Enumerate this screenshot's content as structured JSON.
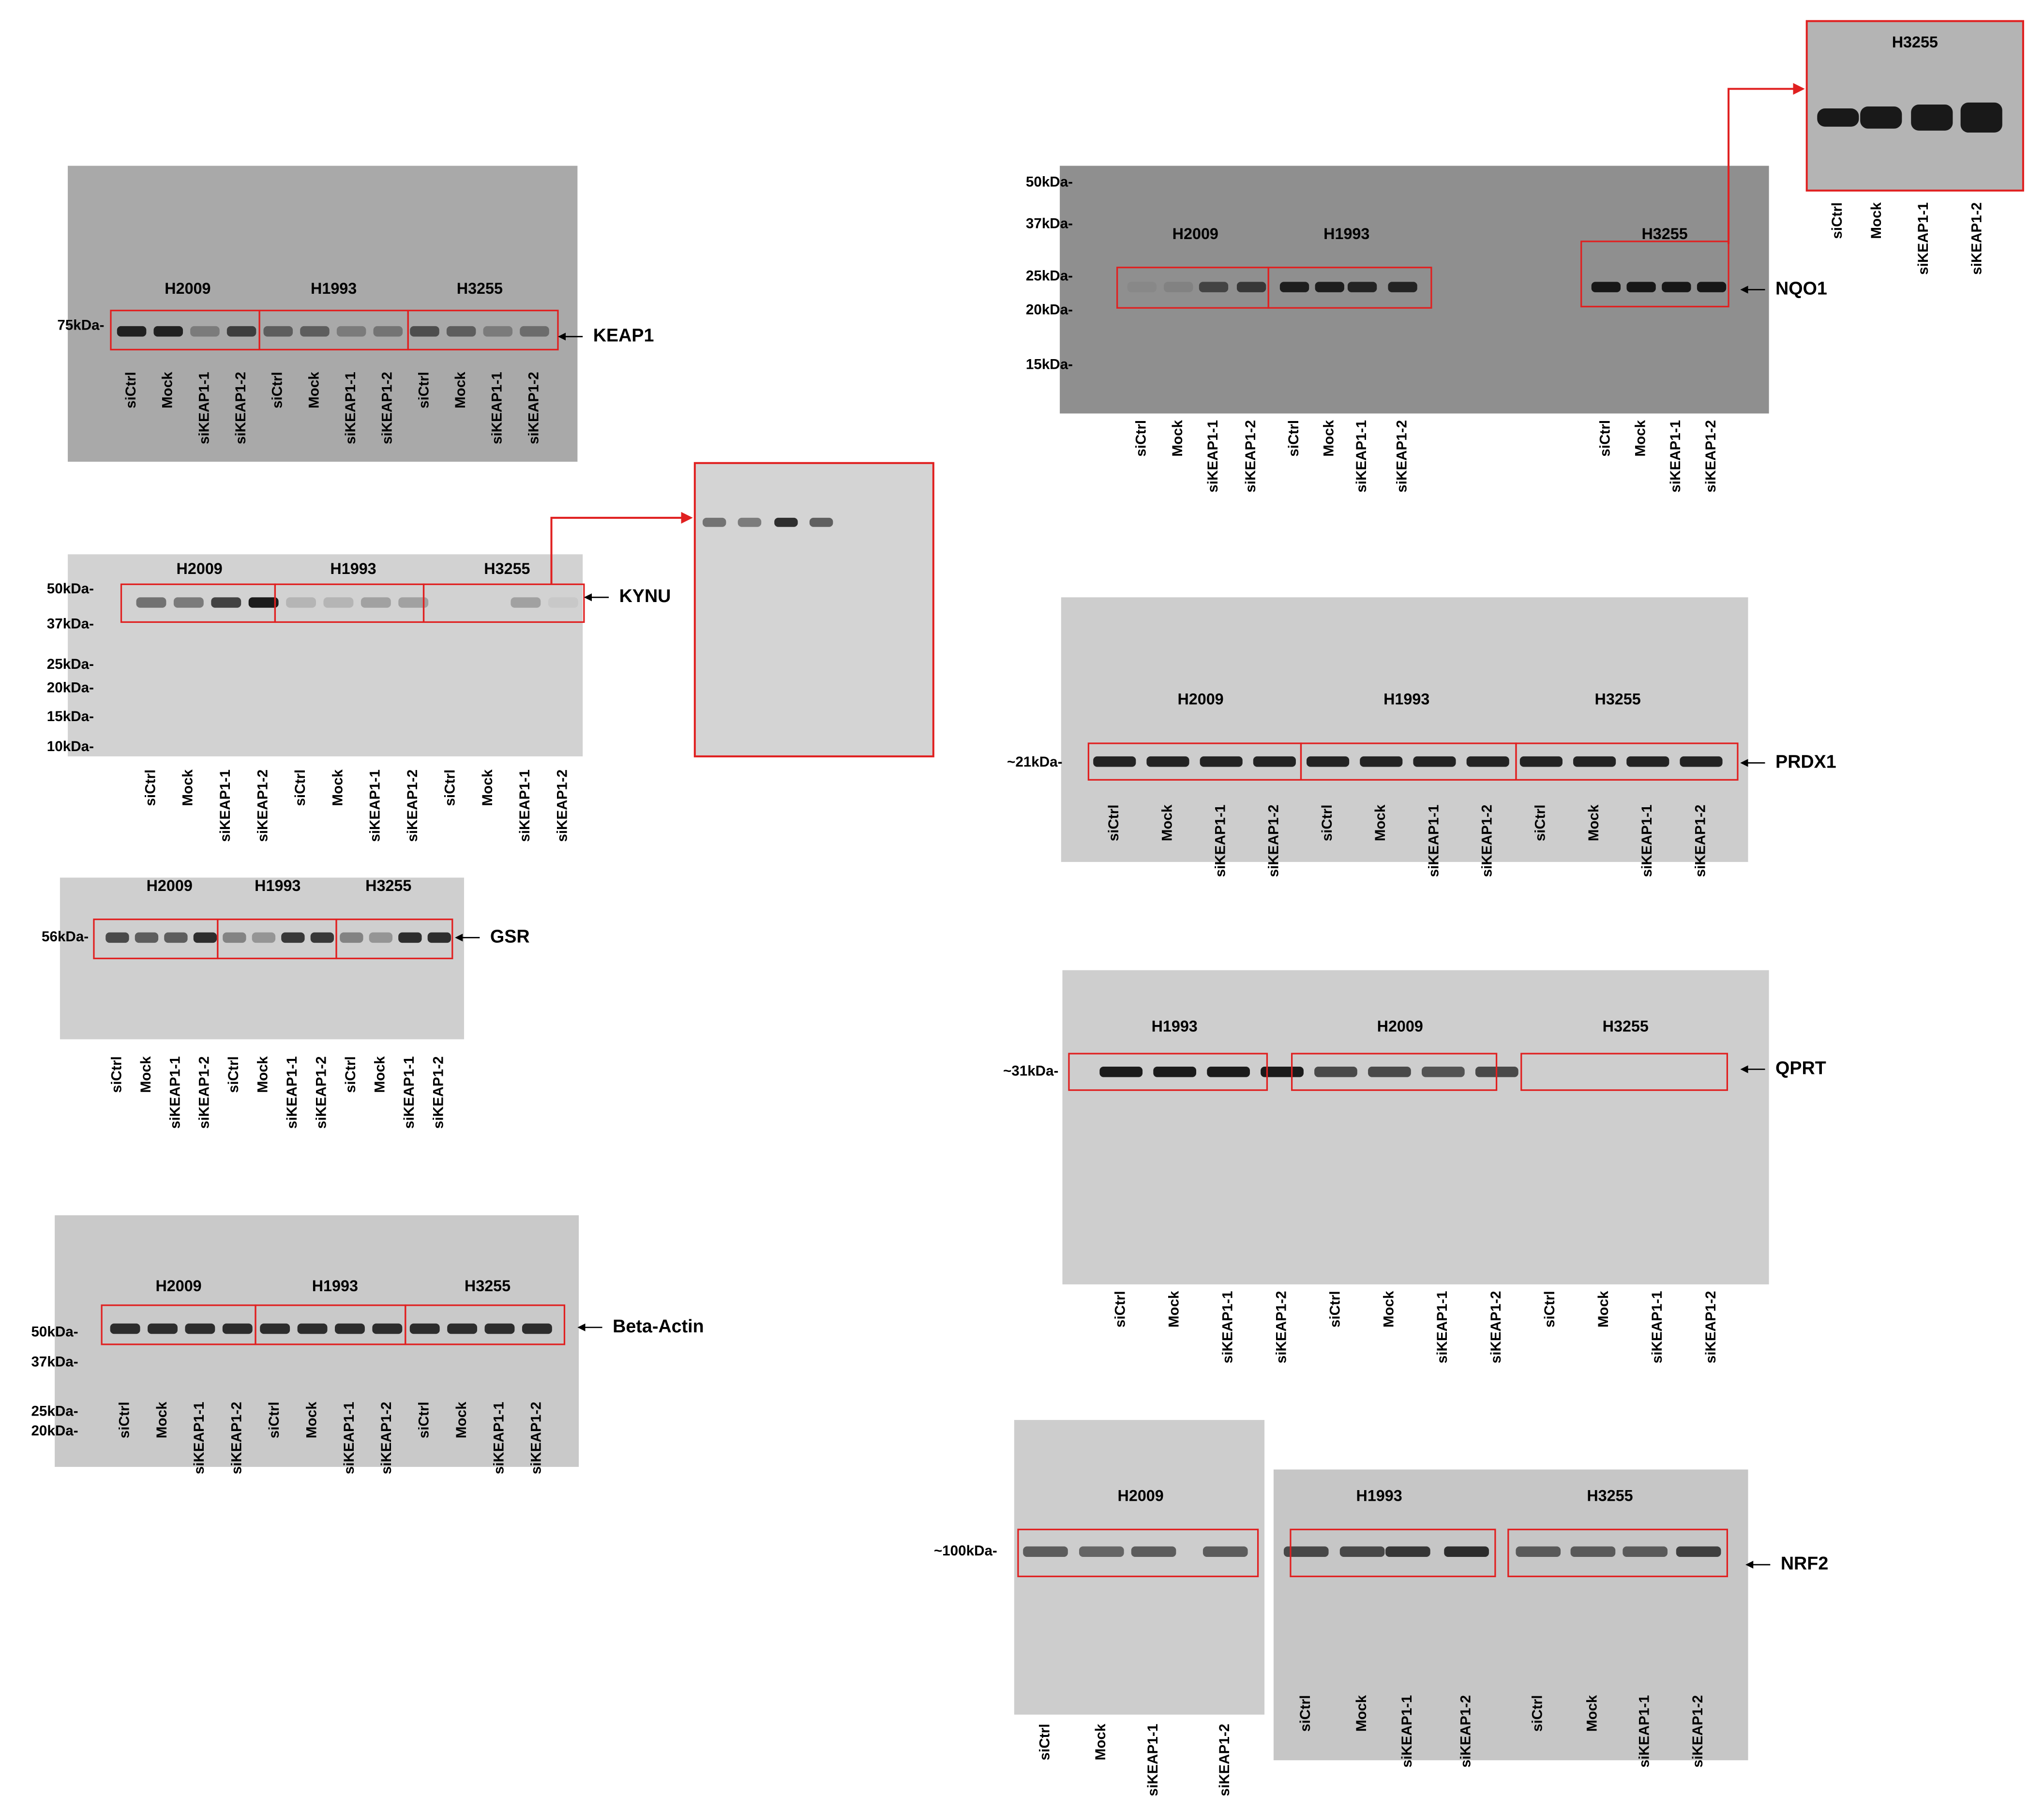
{
  "panels": [
    {
      "protein": "KEAP1",
      "markers": [
        "75kDa-"
      ],
      "cell_lines": [
        "H2009",
        "H1993",
        "H3255"
      ],
      "lanes": [
        "siCtrl",
        "Mock",
        "siKEAP1-1",
        "siKEAP1-2",
        "siCtrl",
        "Mock",
        "siKEAP1-1",
        "siKEAP1-2",
        "siCtrl",
        "Mock",
        "siKEAP1-1",
        "siKEAP1-2"
      ]
    },
    {
      "protein": "KYNU",
      "markers": [
        "50kDa-",
        "37kDa-",
        "25kDa-",
        "20kDa-",
        "15kDa-",
        "10kDa-"
      ],
      "cell_lines": [
        "H2009",
        "H1993",
        "H3255"
      ],
      "lanes": [
        "siCtrl",
        "Mock",
        "siKEAP1-1",
        "siKEAP1-2",
        "siCtrl",
        "Mock",
        "siKEAP1-1",
        "siKEAP1-2",
        "siCtrl",
        "Mock",
        "siKEAP1-1",
        "siKEAP1-2"
      ]
    },
    {
      "protein": "GSR",
      "markers": [
        "56kDa-"
      ],
      "cell_lines": [
        "H2009",
        "H1993",
        "H3255"
      ],
      "lanes": [
        "siCtrl",
        "Mock",
        "siKEAP1-1",
        "siKEAP1-2",
        "siCtrl",
        "Mock",
        "siKEAP1-1",
        "siKEAP1-2",
        "siCtrl",
        "Mock",
        "siKEAP1-1",
        "siKEAP1-2"
      ]
    },
    {
      "protein": "Beta-Actin",
      "markers": [
        "50kDa-",
        "37kDa-",
        "25kDa-",
        "20kDa-"
      ],
      "cell_lines": [
        "H2009",
        "H1993",
        "H3255"
      ],
      "lanes": [
        "siCtrl",
        "Mock",
        "siKEAP1-1",
        "siKEAP1-2",
        "siCtrl",
        "Mock",
        "siKEAP1-1",
        "siKEAP1-2",
        "siCtrl",
        "Mock",
        "siKEAP1-1",
        "siKEAP1-2"
      ]
    },
    {
      "protein": "NQO1",
      "markers": [
        "50kDa-",
        "37kDa-",
        "25kDa-",
        "20kDa-",
        "15kDa-"
      ],
      "cell_lines": [
        "H2009",
        "H1993",
        "H3255"
      ],
      "lanes": [
        "siCtrl",
        "Mock",
        "siKEAP1-1",
        "siKEAP1-2",
        "siCtrl",
        "Mock",
        "siKEAP1-1",
        "siKEAP1-2",
        "siCtrl",
        "Mock",
        "siKEAP1-1",
        "siKEAP1-2"
      ],
      "inset": {
        "title": "H3255",
        "lanes": [
          "siCtrl",
          "Mock",
          "siKEAP1-1",
          "siKEAP1-2"
        ]
      }
    },
    {
      "protein": "PRDX1",
      "markers": [
        "~21kDa-"
      ],
      "cell_lines": [
        "H2009",
        "H1993",
        "H3255"
      ],
      "lanes": [
        "siCtrl",
        "Mock",
        "siKEAP1-1",
        "siKEAP1-2",
        "siCtrl",
        "Mock",
        "siKEAP1-1",
        "siKEAP1-2",
        "siCtrl",
        "Mock",
        "siKEAP1-1",
        "siKEAP1-2"
      ]
    },
    {
      "protein": "QPRT",
      "markers": [
        "~31kDa-"
      ],
      "cell_lines": [
        "H1993",
        "H2009",
        "H3255"
      ],
      "lanes": [
        "siCtrl",
        "Mock",
        "siKEAP1-1",
        "siKEAP1-2",
        "siCtrl",
        "Mock",
        "siKEAP1-1",
        "siKEAP1-2",
        "siCtrl",
        "Mock",
        "siKEAP1-1",
        "siKEAP1-2"
      ]
    },
    {
      "protein": "NRF2",
      "markers": [
        "~100kDa-"
      ],
      "cell_lines": [
        "H2009",
        "H1993",
        "H3255"
      ],
      "lanes": [
        "siCtrl",
        "Mock",
        "siKEAP1-1",
        "siKEAP1-2",
        "siCtrl",
        "Mock",
        "siKEAP1-1",
        "siKEAP1-2",
        "siCtrl",
        "Mock",
        "siKEAP1-1",
        "siKEAP1-2"
      ]
    }
  ]
}
